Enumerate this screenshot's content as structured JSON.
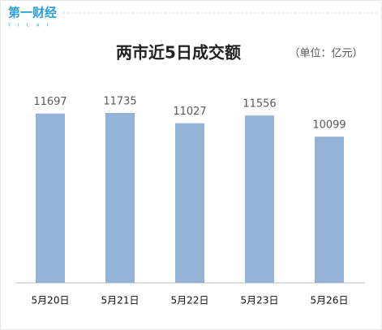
{
  "logo": {
    "text": "第一财经",
    "sub": "YICAI"
  },
  "chart_data": {
    "type": "bar",
    "title": "两市近5日成交额",
    "subtitle": "（单位：亿元）",
    "categories": [
      "5月20日",
      "5月21日",
      "5月22日",
      "5月23日",
      "5月26日"
    ],
    "values": [
      11697,
      11735,
      11027,
      11556,
      10099
    ],
    "color": "#95b3d7"
  }
}
